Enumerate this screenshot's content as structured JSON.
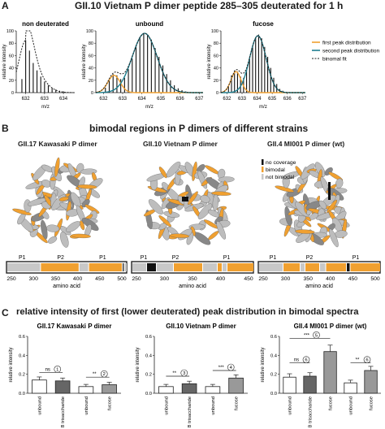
{
  "panelA": {
    "letter": "A",
    "title": "GII.10 Vietnam P dimer peptide 285–305 deuterated for 1 h",
    "ylabel": "relative intensity",
    "xlabel": "m/z",
    "legend": [
      "first peak distribution",
      "second peak distribution",
      "binomal fit"
    ],
    "colors": {
      "first": "#f0a030",
      "second": "#1f7f8f",
      "fit": "#222222"
    }
  },
  "chart_data": [
    {
      "type": "bar",
      "title": "non deuterated",
      "xlabel": "m/z",
      "ylabel": "relative intensity",
      "xlim": [
        631.5,
        634.6
      ],
      "ylim": [
        0,
        100
      ],
      "xticks": [
        632,
        633,
        634
      ],
      "yticks": [
        0,
        20,
        40,
        60,
        80,
        100
      ],
      "x": [
        631.8,
        632.0,
        632.2,
        632.4,
        632.6,
        632.8,
        633.0,
        633.2,
        633.4,
        633.6,
        633.8,
        634.0
      ],
      "values": [
        22,
        85,
        68,
        48,
        36,
        26,
        18,
        12,
        8,
        5,
        3,
        2
      ]
    },
    {
      "type": "bar",
      "title": "unbound",
      "xlabel": "m/z",
      "ylabel": "relative intensity",
      "xlim": [
        631.6,
        637.2
      ],
      "ylim": [
        0,
        100
      ],
      "xticks": [
        632,
        633,
        634,
        635,
        636,
        637
      ],
      "yticks": [
        0,
        20,
        40,
        60,
        80,
        100
      ],
      "x": [
        632.1,
        632.3,
        632.5,
        632.7,
        632.9,
        633.1,
        633.3,
        633.5,
        633.7,
        633.9,
        634.1,
        634.3,
        634.5,
        634.7,
        634.9,
        635.1,
        635.3,
        635.5,
        635.7,
        635.9,
        636.1,
        636.3
      ],
      "values": [
        8,
        22,
        30,
        28,
        22,
        24,
        38,
        55,
        75,
        90,
        96,
        94,
        86,
        72,
        58,
        44,
        30,
        20,
        12,
        7,
        4,
        2
      ]
    },
    {
      "type": "bar",
      "title": "fucose",
      "xlabel": "m/z",
      "ylabel": "relative intensity",
      "xlim": [
        631.6,
        637.2
      ],
      "ylim": [
        0,
        100
      ],
      "xticks": [
        632,
        633,
        634,
        635,
        636,
        637
      ],
      "yticks": [
        0,
        20,
        40,
        60,
        80,
        100
      ],
      "x": [
        632.1,
        632.3,
        632.5,
        632.7,
        632.9,
        633.1,
        633.3,
        633.5,
        633.7,
        633.9,
        634.1,
        634.3,
        634.5,
        634.7,
        634.9,
        635.1,
        635.3,
        635.5,
        635.7
      ],
      "values": [
        10,
        28,
        36,
        34,
        26,
        24,
        36,
        56,
        74,
        88,
        94,
        88,
        74,
        58,
        40,
        24,
        14,
        6,
        3
      ]
    },
    {
      "type": "bar",
      "title": "GII.17 Kawasaki P dimer",
      "ylabel": "relative intensity",
      "ylim": [
        0,
        0.6
      ],
      "categories": [
        "unbound",
        "B trisaccharide",
        "unbound",
        "fucose"
      ],
      "values": [
        0.14,
        0.13,
        0.07,
        0.09
      ]
    },
    {
      "type": "bar",
      "title": "GII.10 Vietnam P dimer",
      "ylabel": "relative intensity",
      "ylim": [
        0,
        0.6
      ],
      "categories": [
        "unbound",
        "B trisaccharide",
        "unbound",
        "fucose"
      ],
      "values": [
        0.07,
        0.1,
        0.07,
        0.16
      ]
    },
    {
      "type": "bar",
      "title": "GII.4 MI001 P dimer (wt)",
      "ylabel": "relative intensity",
      "ylim": [
        0,
        0.6
      ],
      "categories": [
        "unbound",
        "B trisaccharide",
        "fucose",
        "unbound",
        "fucose"
      ],
      "values": [
        0.17,
        0.18,
        0.44,
        0.11,
        0.24
      ]
    }
  ],
  "panelB": {
    "letter": "B",
    "title": "bimodal regions in P dimers of different strains",
    "subtitles": [
      "GII.17 Kawasaki P dimer",
      "GII.10 Vietnam P dimer",
      "GII.4 MI001 P dimer (wt)"
    ],
    "legend": [
      "no coverage",
      "bimodal",
      "not bimodal"
    ],
    "colors": {
      "nocov": "#111111",
      "bimodal": "#f0a030",
      "notbi": "#c8c8c8"
    },
    "domain_labels": [
      "P1",
      "P2",
      "P1"
    ],
    "xlabel": "amino acid",
    "axes": [
      {
        "ticks": [
          "250",
          "300",
          "350",
          "400",
          "450",
          "500"
        ]
      },
      {
        "ticks": [
          "250",
          "300",
          "350",
          "400",
          "450"
        ]
      },
      {
        "ticks": [
          "250",
          "300",
          "350",
          "400",
          "450",
          "500"
        ]
      }
    ]
  },
  "panelC": {
    "letter": "C",
    "title": "relative intensity of first (lower deuterated) peak distribution in bimodal spectra",
    "ylabel": "relative intensity",
    "yticks": [
      "0.0",
      "0.2",
      "0.4",
      "0.6"
    ],
    "sig": {
      "k": [
        {
          "label": "ns",
          "num": "1"
        },
        {
          "label": "**",
          "num": "2"
        }
      ],
      "v": [
        {
          "label": "**",
          "num": "3"
        },
        {
          "label": "***",
          "num": "4"
        }
      ],
      "m": [
        {
          "label": "ns",
          "num": "6"
        },
        {
          "label": "**",
          "num": "6"
        },
        {
          "label": "***",
          "num": "5"
        }
      ]
    }
  }
}
